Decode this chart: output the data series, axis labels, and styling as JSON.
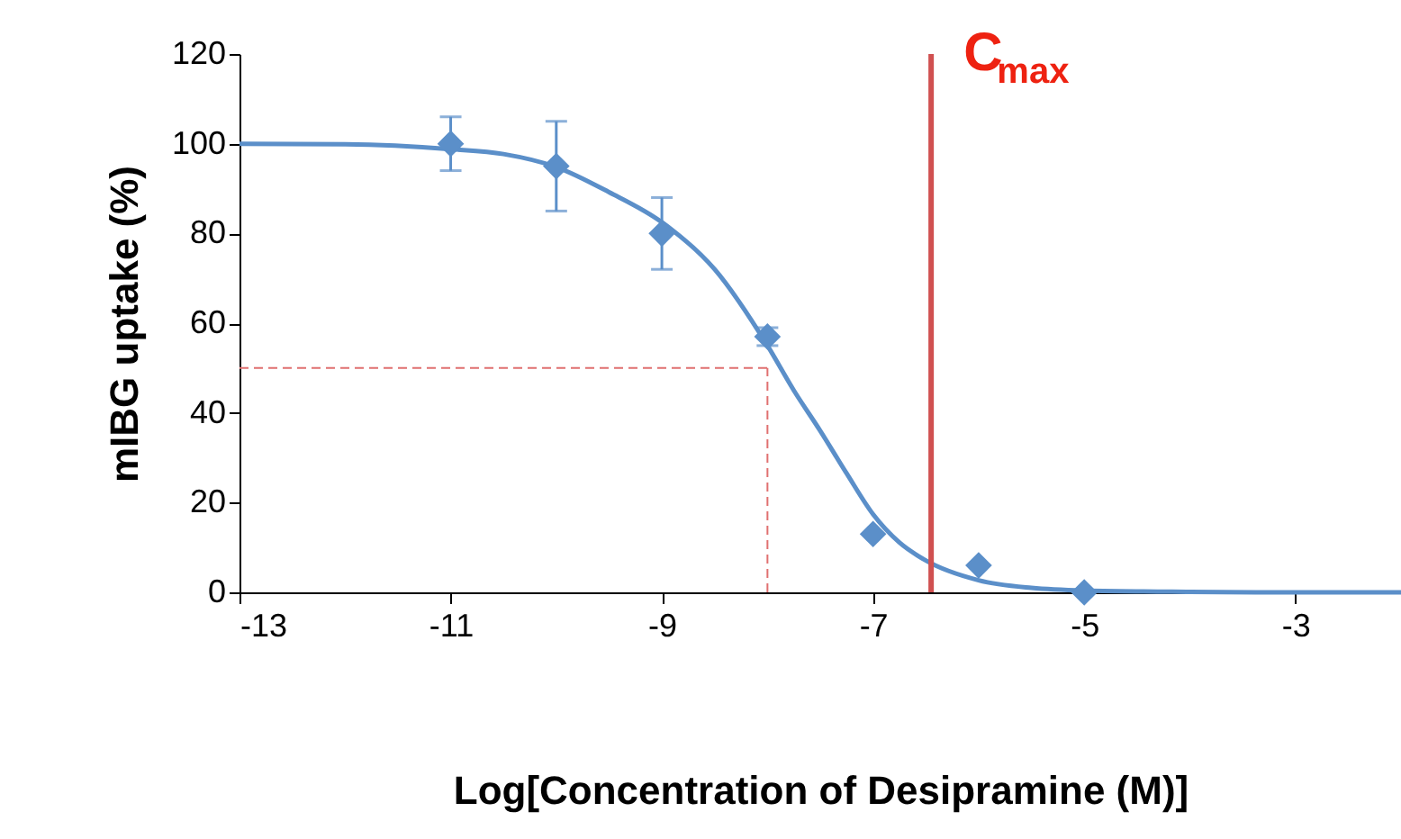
{
  "chart_data": {
    "type": "scatter",
    "xlabel": "Log[Concentration of Desipramine (M)]",
    "ylabel": "mIBG uptake (%)",
    "xlim": [
      -13,
      -2
    ],
    "xticks": [
      -13,
      -11,
      -9,
      -7,
      -5,
      -3
    ],
    "ylim": [
      0,
      120
    ],
    "yticks": [
      0,
      20,
      40,
      60,
      80,
      100,
      120
    ],
    "grid": false,
    "series": [
      {
        "color": "#5b8fc9",
        "marker": "diamond",
        "x": [
          -11,
          -10,
          -9,
          -8,
          -7,
          -6,
          -5
        ],
        "values": [
          100,
          95,
          80,
          57,
          13,
          6,
          0
        ],
        "errors": [
          6,
          10,
          8,
          2,
          null,
          null,
          null
        ]
      },
      {
        "type": "line",
        "color": "#5b8fc9",
        "x": [
          -13,
          -12,
          -11,
          -10.5,
          -10,
          -9.5,
          -9,
          -8.5,
          -8,
          -7.75,
          -7.5,
          -7.25,
          -7,
          -6.75,
          -6.5,
          -6,
          -5.5,
          -5,
          -4,
          -3,
          -2
        ],
        "values": [
          100,
          99.9,
          98.8,
          97.7,
          94.8,
          89.2,
          82.5,
          72,
          55,
          45,
          36,
          26.5,
          17.4,
          11.1,
          7.1,
          2.7,
          1,
          0.4,
          0.1,
          0,
          0
        ]
      }
    ],
    "ref_lines": [
      {
        "axis": "x",
        "value": -6.45,
        "label": "C$_{max}$",
        "color": "#d05050",
        "line_style": "solid"
      },
      {
        "axis": "y",
        "value": 50,
        "color": "#e07070",
        "line_style": "dashed"
      },
      {
        "axis": "x",
        "value": -8,
        "color": "#e07070",
        "line_style": "dashed"
      }
    ]
  }
}
